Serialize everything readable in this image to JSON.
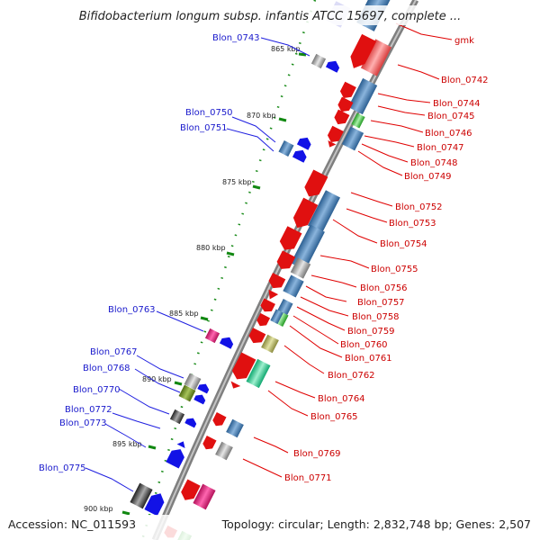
{
  "title": "Bifidobacterium longum subsp. infantis ATCC 15697, complete ...",
  "footer": {
    "accession": "Accession: NC_011593",
    "topology": "Topology: circular; Length: 2,832,748 bp; Genes: 2,507"
  },
  "colors": {
    "forward_label": "#d40000",
    "reverse_label": "#1a1acc",
    "backbone": "#8a8a8a",
    "ruler": "#118811"
  },
  "ticks": [
    "865 kbp",
    "870 kbp",
    "875 kbp",
    "880 kbp",
    "885 kbp",
    "890 kbp",
    "895 kbp",
    "900 kbp"
  ],
  "forward_labels": [
    "gmk",
    "Blon_0742",
    "Blon_0744",
    "Blon_0745",
    "Blon_0746",
    "Blon_0747",
    "Blon_0748",
    "Blon_0749",
    "Blon_0752",
    "Blon_0753",
    "Blon_0754",
    "Blon_0755",
    "Blon_0756",
    "Blon_0757",
    "Blon_0758",
    "Blon_0759",
    "Blon_0760",
    "Blon_0761",
    "Blon_0762",
    "Blon_0764",
    "Blon_0765",
    "Blon_0769",
    "Blon_0771"
  ],
  "reverse_labels": [
    "Blon_0743",
    "Blon_0750",
    "Blon_0751",
    "Blon_0763",
    "Blon_0767",
    "Blon_0768",
    "Blon_0770",
    "Blon_0772",
    "Blon_0773",
    "Blon_0775"
  ]
}
